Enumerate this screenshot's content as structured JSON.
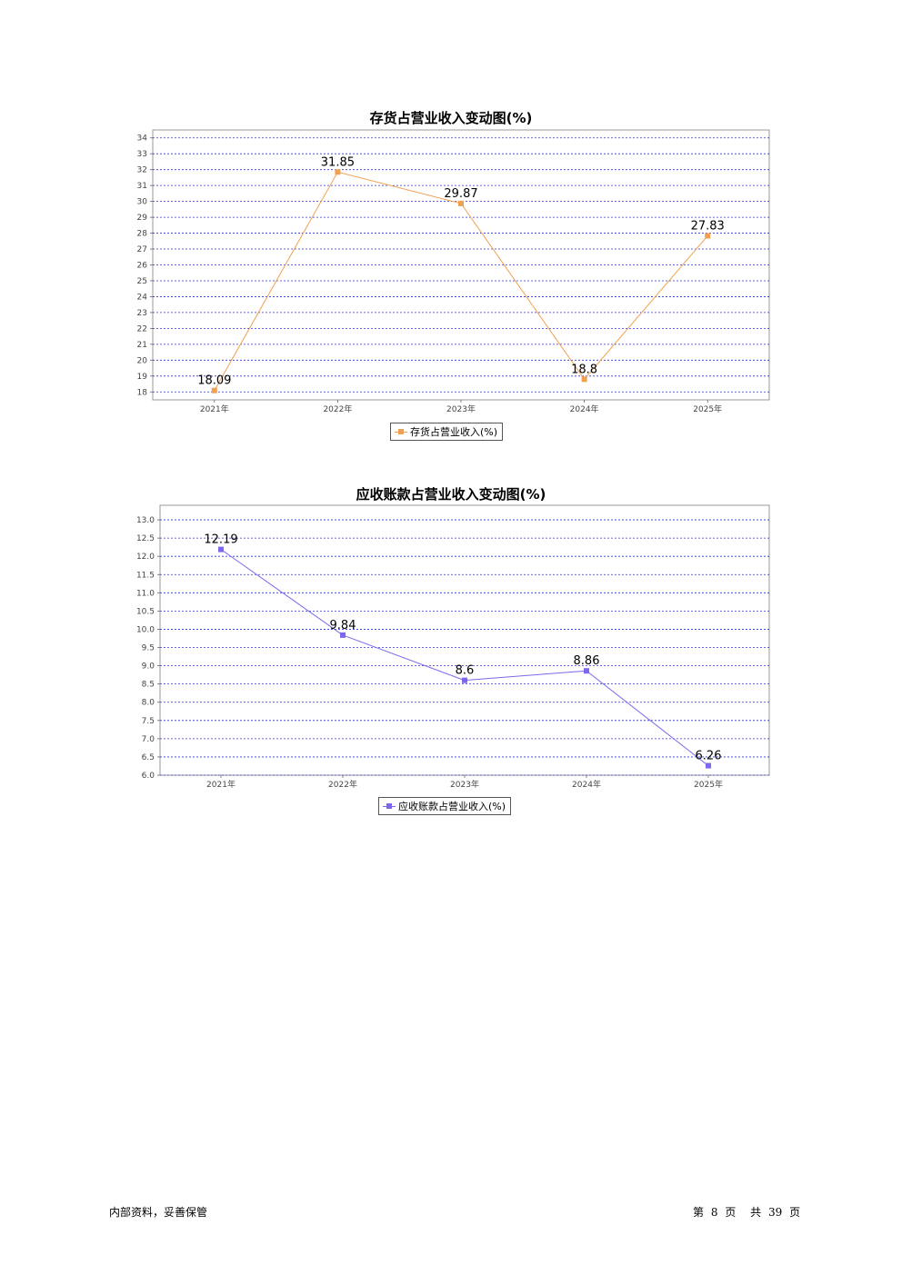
{
  "chart_data": [
    {
      "type": "line",
      "title": "存货占营业收入变动图(%)",
      "categories": [
        "2021年",
        "2022年",
        "2023年",
        "2024年",
        "2025年"
      ],
      "series": [
        {
          "name": "存货占营业收入(%)",
          "values": [
            18.09,
            31.85,
            29.87,
            18.8,
            27.83
          ],
          "color": "#f0a050"
        }
      ],
      "data_labels": [
        "18.09",
        "31.85",
        "29.87",
        "18.8",
        "27.83"
      ],
      "yticks": [
        18,
        19,
        20,
        21,
        22,
        23,
        24,
        25,
        26,
        27,
        28,
        29,
        30,
        31,
        32,
        33,
        34
      ],
      "ylim": [
        17.5,
        34.5
      ],
      "grid": true,
      "gridline_color": "#3333cc",
      "legend": "bottom-center"
    },
    {
      "type": "line",
      "title": "应收账款占营业收入变动图(%)",
      "categories": [
        "2021年",
        "2022年",
        "2023年",
        "2024年",
        "2025年"
      ],
      "series": [
        {
          "name": "应收账款占营业收入(%)",
          "values": [
            12.19,
            9.84,
            8.6,
            8.86,
            6.26
          ],
          "color": "#7b68ee"
        }
      ],
      "data_labels": [
        "12.19",
        "9.84",
        "8.6",
        "8.86",
        "6.26"
      ],
      "yticks": [
        "6.0",
        "6.5",
        "7.0",
        "7.5",
        "8.0",
        "8.5",
        "9.0",
        "9.5",
        "10.0",
        "10.5",
        "11.0",
        "11.5",
        "12.0",
        "12.5",
        "13.0"
      ],
      "ylim": [
        6.0,
        13.4
      ],
      "grid": true,
      "gridline_color": "#3333cc",
      "legend": "bottom-center"
    }
  ],
  "footer": {
    "left": "内部资料，妥善保管",
    "page_prefix": "第",
    "page_num": "8",
    "page_mid": "页",
    "total_prefix": "共",
    "total_num": "39",
    "total_suffix": "页"
  }
}
